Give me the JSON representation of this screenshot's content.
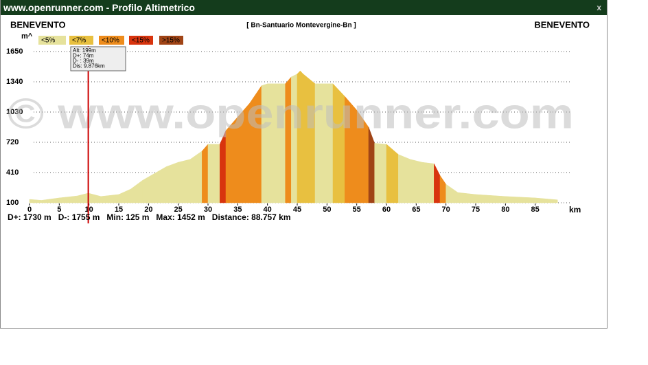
{
  "window": {
    "title": "www.openrunner.com - Profilo Altimetrico",
    "close": "x"
  },
  "chart_data": {
    "type": "area",
    "title": "[ Bn-Santuario Montevergine-Bn ]",
    "start_label": "BENEVENTO",
    "end_label": "BENEVENTO",
    "y_label": "m^",
    "x_label": "km",
    "watermark": "© www.openrunner.com",
    "x": [
      0,
      2,
      5,
      8,
      9.876,
      12,
      15,
      17,
      19,
      21,
      23,
      25,
      27,
      29,
      30,
      32,
      33,
      35,
      37,
      39,
      40,
      43,
      44,
      45,
      45.5,
      46,
      47,
      48,
      51,
      53,
      55,
      57,
      58,
      60,
      62,
      64,
      66,
      68,
      69,
      70,
      72,
      75,
      80,
      85,
      88.757
    ],
    "values": [
      135,
      125,
      150,
      170,
      199,
      165,
      185,
      240,
      330,
      400,
      470,
      515,
      545,
      630,
      700,
      700,
      840,
      980,
      1120,
      1300,
      1320,
      1320,
      1390,
      1420,
      1452,
      1420,
      1370,
      1320,
      1320,
      1190,
      1050,
      875,
      710,
      700,
      595,
      545,
      515,
      500,
      380,
      290,
      205,
      185,
      165,
      150,
      130
    ],
    "xlim": [
      0,
      90
    ],
    "ylim": [
      100,
      1650
    ],
    "xticks": [
      0,
      5,
      10,
      15,
      20,
      25,
      30,
      35,
      40,
      45,
      50,
      55,
      60,
      65,
      70,
      75,
      80,
      85
    ],
    "yticks": [
      100,
      410,
      720,
      1030,
      1340,
      1650
    ],
    "grid": true,
    "legend": [
      {
        "label": "<5%",
        "value": 5,
        "color": "#e6e29c"
      },
      {
        "label": "<7%",
        "value": 7,
        "color": "#e8c040"
      },
      {
        "label": "<10%",
        "value": 10,
        "color": "#ee8c1c"
      },
      {
        "label": "<15%",
        "value": 15,
        "color": "#d8340e"
      },
      {
        "label": ">15%",
        "value": 15,
        "color": "#a04416"
      }
    ],
    "cursor": {
      "value": 9.876,
      "label": "Dis: 9.876km"
    },
    "tooltip": [
      "Alt: 199m",
      "D+: 74m",
      "D- : 39m"
    ],
    "stats": [
      "D+: 1730 m",
      "D-: 1755 m",
      "Min: 125 m",
      "Max: 1452 m",
      "Distance: 88.757 km"
    ]
  }
}
